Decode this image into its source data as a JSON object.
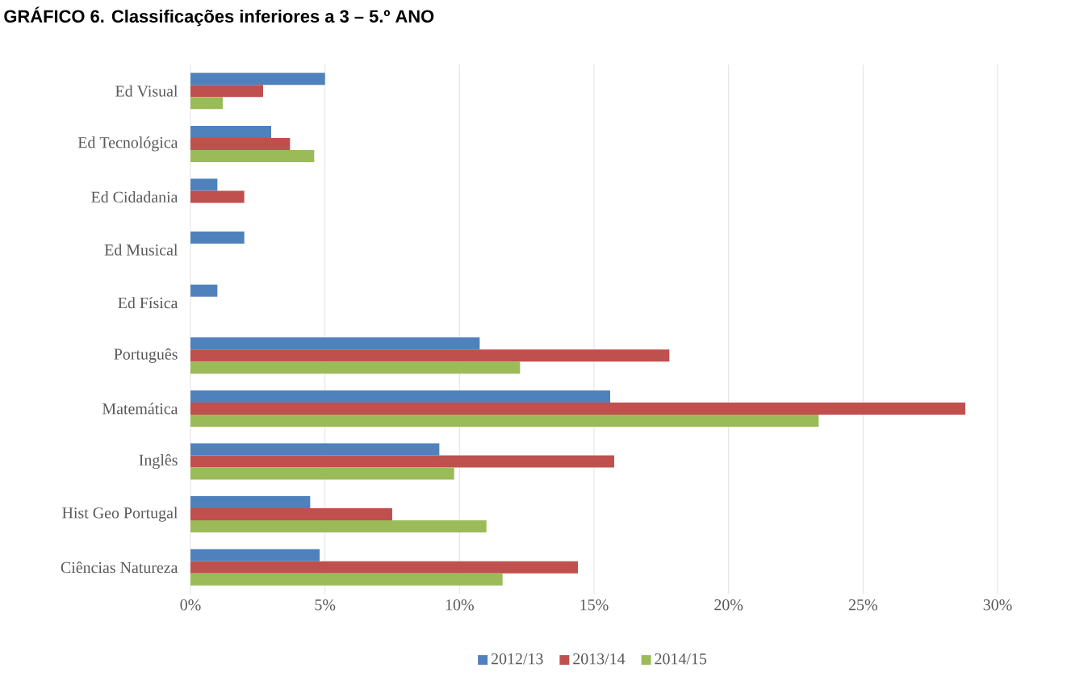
{
  "chart_data": {
    "type": "bar",
    "orientation": "horizontal",
    "title": "GRÁFICO 6. Classificações inferiores a 3 – 5.º ANO",
    "categories": [
      "Ed Visual",
      "Ed Tecnológica",
      "Ed Cidadania",
      "Ed Musical",
      "Ed Física",
      "Português",
      "Matemática",
      "Inglês",
      "Hist Geo Portugal",
      "Ciências Natureza"
    ],
    "series": [
      {
        "name": "2012/13",
        "color": "#4f81bd",
        "values": [
          5.0,
          3.0,
          1.0,
          2.0,
          1.0,
          10.75,
          15.6,
          9.25,
          4.45,
          4.8
        ]
      },
      {
        "name": "2013/14",
        "color": "#c0504d",
        "values": [
          2.7,
          3.7,
          2.0,
          null,
          null,
          17.8,
          28.8,
          15.75,
          7.5,
          14.4
        ]
      },
      {
        "name": "2014/15",
        "color": "#9bbb59",
        "values": [
          1.2,
          4.6,
          null,
          null,
          null,
          12.25,
          23.35,
          9.8,
          11.0,
          11.6
        ]
      }
    ],
    "xlim": [
      0,
      30
    ],
    "xticks": [
      {
        "value": 0,
        "label": "0%"
      },
      {
        "value": 5,
        "label": "5%"
      },
      {
        "value": 10,
        "label": "10%"
      },
      {
        "value": 15,
        "label": "15%"
      },
      {
        "value": 20,
        "label": "20%"
      },
      {
        "value": 25,
        "label": "25%"
      },
      {
        "value": 30,
        "label": "30%"
      }
    ],
    "grid": "x",
    "legend": "bottom"
  }
}
